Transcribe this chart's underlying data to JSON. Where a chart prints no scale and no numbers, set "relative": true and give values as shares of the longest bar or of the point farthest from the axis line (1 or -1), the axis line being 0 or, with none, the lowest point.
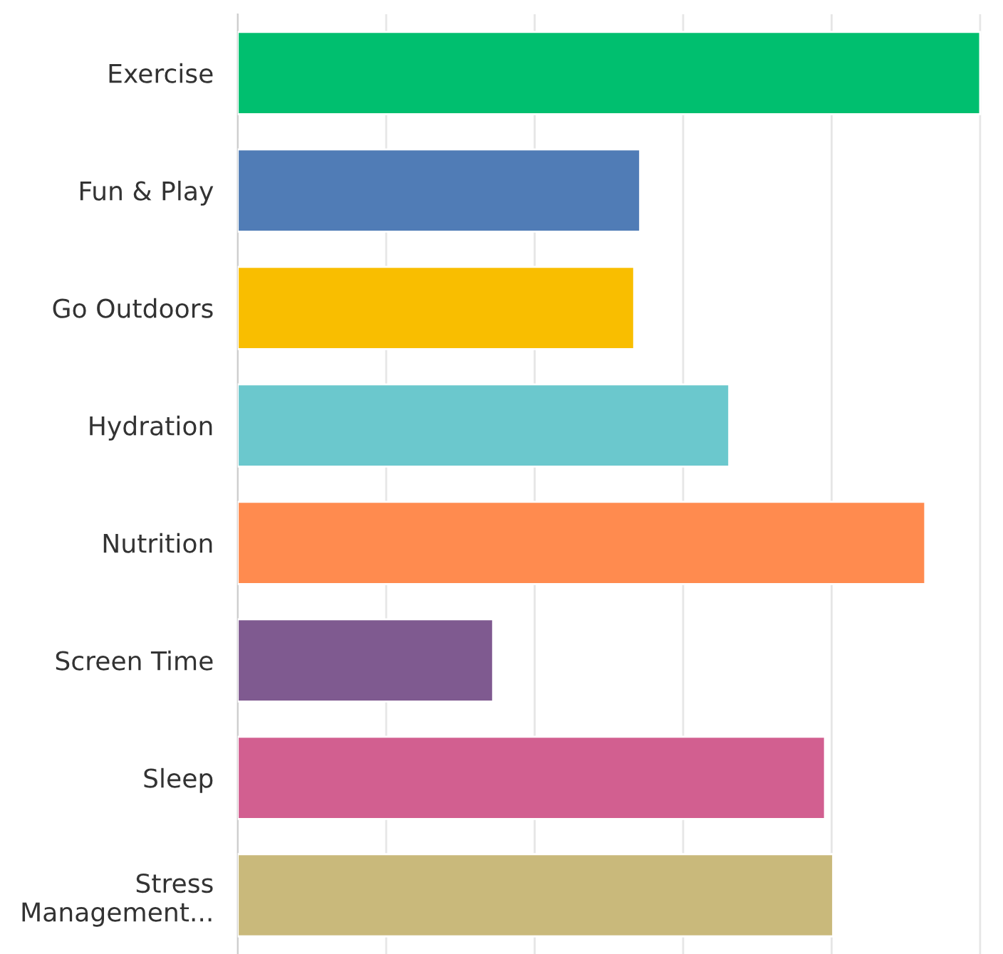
{
  "chart_data": {
    "type": "bar",
    "orientation": "horizontal",
    "relative": true,
    "grid": "x",
    "legend": false,
    "categories": [
      "Exercise",
      "Fun & Play",
      "Go Outdoors",
      "Hydration",
      "Nutrition",
      "Screen Time",
      "Sleep",
      "Stress\nManagement..."
    ],
    "values": [
      1,
      0.542,
      0.534,
      0.662,
      0.926,
      0.344,
      0.791,
      0.802
    ],
    "colors": [
      "#00bf6f",
      "#507cb6",
      "#f9be00",
      "#6bc8cd",
      "#ff8b4f",
      "#7f5a90",
      "#d25f90",
      "#c9b97b"
    ]
  }
}
